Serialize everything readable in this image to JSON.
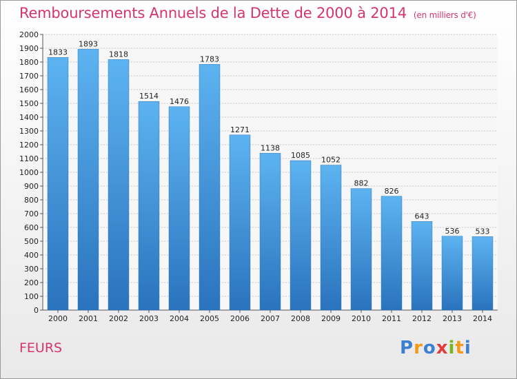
{
  "chart_data": {
    "type": "bar",
    "title": "Remboursements Annuels de la Dette de 2000 à 2014",
    "unit": "(en milliers d'€)",
    "categories": [
      "2000",
      "2001",
      "2002",
      "2003",
      "2004",
      "2005",
      "2006",
      "2007",
      "2008",
      "2009",
      "2010",
      "2011",
      "2012",
      "2013",
      "2014"
    ],
    "values": [
      1833,
      1893,
      1818,
      1514,
      1476,
      1783,
      1271,
      1138,
      1085,
      1052,
      882,
      826,
      643,
      536,
      533
    ],
    "ylim": [
      0,
      2000
    ],
    "ytick_step": 100,
    "grid": true,
    "bar_color": "#4a9fe0",
    "bar_color_light": "#5db3f0",
    "bar_color_dark": "#2a73bd"
  },
  "footer": {
    "city": "FEURS",
    "logo_letters": [
      "P",
      "r",
      "o",
      "x",
      "i",
      "t",
      "i"
    ],
    "logo_colors": [
      "#3d7fd0",
      "#f29a1a",
      "#3d7fd0",
      "#e23b3b",
      "#7ab51d",
      "#f29a1a",
      "#3d7fd0"
    ]
  }
}
